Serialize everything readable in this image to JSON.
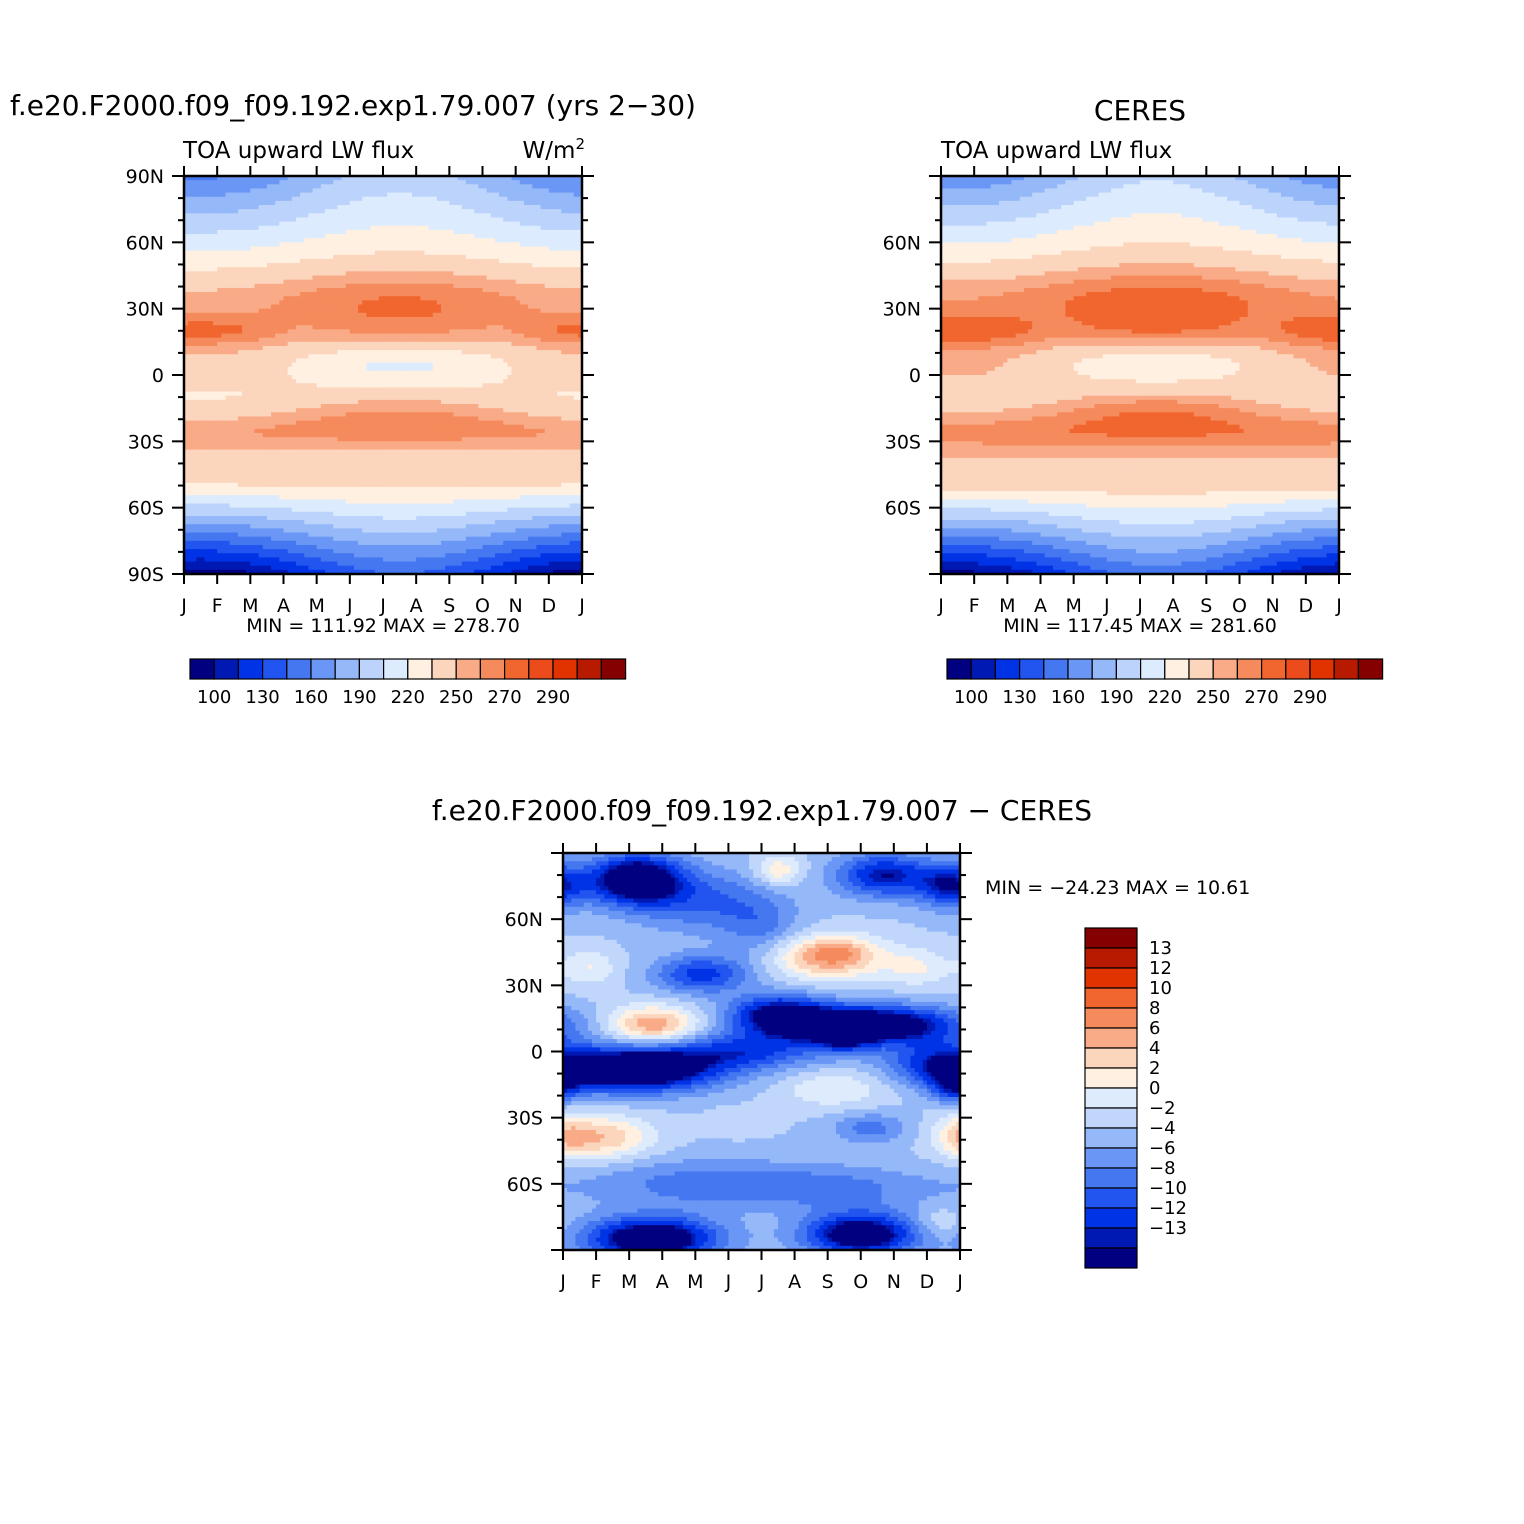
{
  "colors": {
    "scale_main": [
      "#000080",
      "#0019b3",
      "#0033e6",
      "#2255f0",
      "#4477f0",
      "#6a96f5",
      "#95b8f8",
      "#bcd3fb",
      "#dcebfd",
      "#fff0e1",
      "#fcd5bd",
      "#f9ab88",
      "#f58a5c",
      "#f1662e",
      "#ec4b1c",
      "#e03300",
      "#b81a00",
      "#850000"
    ],
    "scale_diff": [
      "#000080",
      "#0019b3",
      "#0033e6",
      "#2255f0",
      "#4477f0",
      "#6a96f5",
      "#95b8f8",
      "#c0d6fb",
      "#ddebfd",
      "#fff0e1",
      "#fcd5bd",
      "#f9ab88",
      "#f58a5c",
      "#f1662e",
      "#e03300",
      "#b81a00",
      "#850000"
    ]
  },
  "panel_model": {
    "title": "f.e20.F2000.f09_f09.192.exp1.79.007 (yrs 2−30)",
    "subtitle_left": "TOA upward LW flux",
    "units_base": "W/m",
    "units_exp": "2",
    "minmax": "MIN = 111.92 MAX = 278.70"
  },
  "panel_obs": {
    "title": "CERES",
    "subtitle_left": "TOA upward LW flux",
    "minmax": "MIN = 117.45 MAX = 281.60"
  },
  "panel_diff": {
    "title": "f.e20.F2000.f09_f09.192.exp1.79.007 − CERES",
    "minmax": "MIN = −24.23 MAX =   10.61"
  },
  "legend_main_labels": [
    "100",
    "130",
    "160",
    "190",
    "220",
    "250",
    "270",
    "290"
  ],
  "legend_diff_labels": [
    "13",
    "12",
    "10",
    "8",
    "6",
    "4",
    "2",
    "0",
    "−2",
    "−4",
    "−6",
    "−8",
    "−10",
    "−12",
    "−13"
  ],
  "chart_data": [
    {
      "type": "heatmap",
      "title": "f.e20.F2000.f09_f09.192.exp1.79.007 (yrs 2−30)",
      "subtitle": "TOA upward LW flux",
      "units": "W/m2",
      "x_ticks": [
        "J",
        "F",
        "M",
        "A",
        "M",
        "J",
        "J",
        "A",
        "S",
        "O",
        "N",
        "D",
        "J"
      ],
      "y_ticks": [
        "90N",
        "60N",
        "30N",
        "0",
        "30S",
        "60S",
        "90S"
      ],
      "ylim": [
        -90,
        90
      ],
      "levels": [
        100,
        115,
        130,
        145,
        160,
        175,
        190,
        205,
        220,
        235,
        250,
        260,
        270,
        280,
        290
      ],
      "min": 111.92,
      "max": 278.7,
      "model": "zonal_lw",
      "params": {
        "shift": 0,
        "extra": [
          -3,
          0,
          0,
          0
        ]
      }
    },
    {
      "type": "heatmap",
      "title": "CERES",
      "subtitle": "TOA upward LW flux",
      "x_ticks": [
        "J",
        "F",
        "M",
        "A",
        "M",
        "J",
        "J",
        "A",
        "S",
        "O",
        "N",
        "D",
        "J"
      ],
      "y_ticks": [
        "60N",
        "30N",
        "0",
        "30S",
        "60S"
      ],
      "ylim": [
        -90,
        90
      ],
      "levels": [
        100,
        115,
        130,
        145,
        160,
        175,
        190,
        205,
        220,
        235,
        250,
        260,
        270,
        280,
        290
      ],
      "min": 117.45,
      "max": 281.6,
      "model": "zonal_lw",
      "params": {
        "shift": 3,
        "extra": [
          0,
          3,
          4,
          0
        ]
      }
    },
    {
      "type": "heatmap",
      "title": "f.e20.F2000.f09_f09.192.exp1.79.007 − CERES",
      "x_ticks": [
        "J",
        "F",
        "M",
        "A",
        "M",
        "J",
        "J",
        "A",
        "S",
        "O",
        "N",
        "D",
        "J"
      ],
      "y_ticks": [
        "60N",
        "30N",
        "0",
        "30S",
        "60S"
      ],
      "ylim": [
        -90,
        90
      ],
      "levels": [
        -13,
        -12,
        -10,
        -8,
        -6,
        -4,
        -2,
        0,
        2,
        4,
        6,
        8,
        10,
        12,
        13
      ],
      "min": -24.23,
      "max": 10.61,
      "model": "difference",
      "features": [
        {
          "t": 2.2,
          "lat": 78,
          "st": 1.0,
          "sl": 8,
          "a": -16
        },
        {
          "t": 9.7,
          "lat": 80,
          "st": 1.0,
          "sl": 7,
          "a": -11
        },
        {
          "t": 11.7,
          "lat": 75,
          "st": 0.7,
          "sl": 7,
          "a": -10
        },
        {
          "t": 4.3,
          "lat": 68,
          "st": 1.5,
          "sl": 10,
          "a": -6
        },
        {
          "t": 6.5,
          "lat": 82,
          "st": 0.5,
          "sl": 5,
          "a": 6
        },
        {
          "t": 6.0,
          "lat": 55,
          "st": 0.8,
          "sl": 10,
          "a": -4
        },
        {
          "t": 8.0,
          "lat": 43,
          "st": 1.2,
          "sl": 7,
          "a": 10
        },
        {
          "t": 8.4,
          "lat": 45,
          "st": 0.6,
          "sl": 4,
          "a": 2
        },
        {
          "t": 10.7,
          "lat": 38,
          "st": 0.7,
          "sl": 6,
          "a": 4
        },
        {
          "t": 0.8,
          "lat": 38,
          "st": 0.6,
          "sl": 6,
          "a": 4
        },
        {
          "t": 4.2,
          "lat": 35,
          "st": 1.0,
          "sl": 6,
          "a": -9
        },
        {
          "t": 9.0,
          "lat": 12,
          "st": 2.0,
          "sl": 6,
          "a": -18
        },
        {
          "t": 6.5,
          "lat": 18,
          "st": 1.0,
          "sl": 6,
          "a": -10
        },
        {
          "t": 2.7,
          "lat": 12,
          "st": 1.0,
          "sl": 6,
          "a": 10
        },
        {
          "t": 2.2,
          "lat": -8,
          "st": 1.7,
          "sl": 7,
          "a": -18
        },
        {
          "t": 5.5,
          "lat": 0,
          "st": 1.6,
          "sl": 6,
          "a": -8
        },
        {
          "t": 8.5,
          "lat": 6,
          "st": 0.6,
          "sl": 5,
          "a": -6
        },
        {
          "t": 8.2,
          "lat": -17,
          "st": 1.1,
          "sl": 6,
          "a": 4
        },
        {
          "t": 11.3,
          "lat": -5,
          "st": 1.1,
          "sl": 7,
          "a": -8
        },
        {
          "t": 11.8,
          "lat": -16,
          "st": 0.5,
          "sl": 5,
          "a": -8
        },
        {
          "t": 1.1,
          "lat": -39,
          "st": 1.1,
          "sl": 7,
          "a": 8
        },
        {
          "t": 12.0,
          "lat": -38,
          "st": 0.5,
          "sl": 7,
          "a": 4
        },
        {
          "t": 5.3,
          "lat": -32,
          "st": 0.6,
          "sl": 4,
          "a": 2
        },
        {
          "t": 9.3,
          "lat": -35,
          "st": 0.8,
          "sl": 5,
          "a": -5
        },
        {
          "t": 4.2,
          "lat": -60,
          "st": 2.5,
          "sl": 8,
          "a": -5
        },
        {
          "t": 8.5,
          "lat": -62,
          "st": 2.0,
          "sl": 7,
          "a": -4
        },
        {
          "t": 2.7,
          "lat": -85,
          "st": 1.4,
          "sl": 7,
          "a": -16
        },
        {
          "t": 9.0,
          "lat": -83,
          "st": 1.2,
          "sl": 7,
          "a": -15
        },
        {
          "t": 11.4,
          "lat": -78,
          "st": 0.5,
          "sl": 5,
          "a": 3
        }
      ]
    }
  ]
}
